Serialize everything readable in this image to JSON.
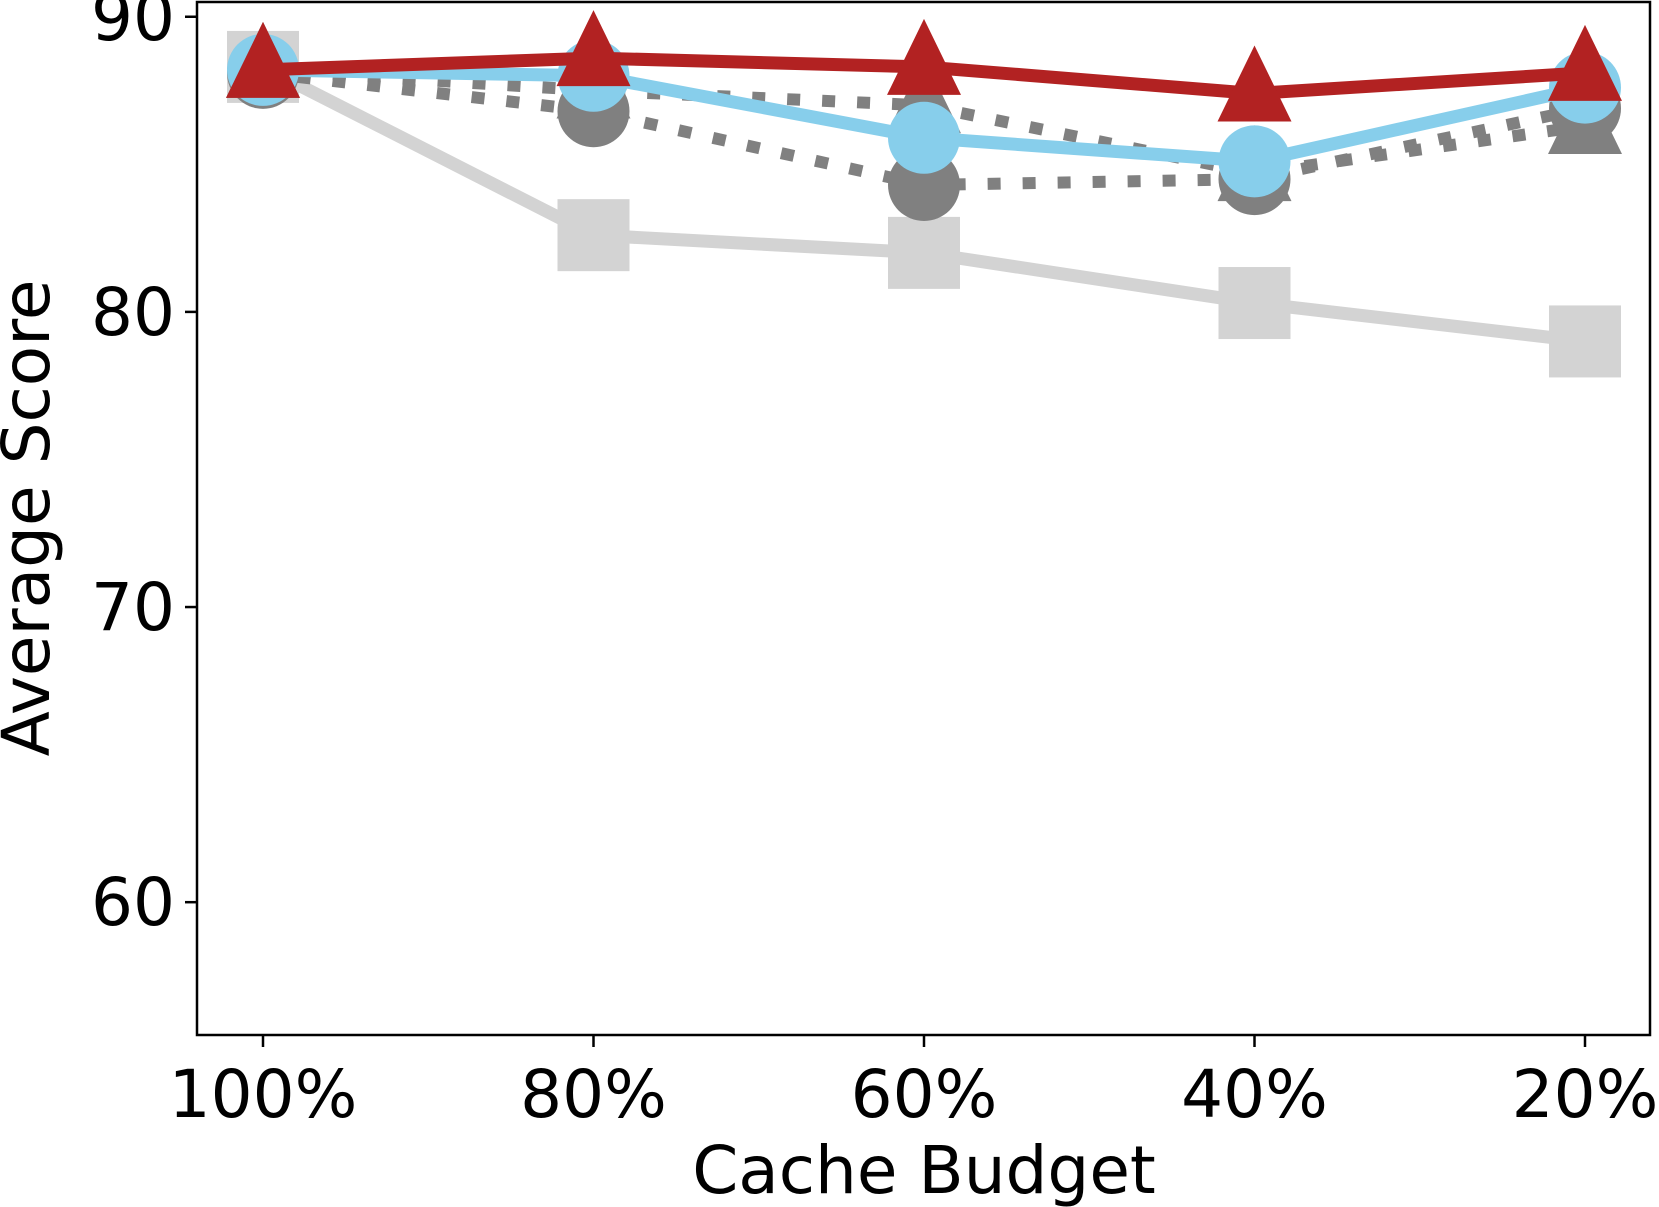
{
  "chart_data": {
    "type": "line",
    "title": "",
    "xlabel": "Cache Budget",
    "ylabel": "Average Score",
    "categories": [
      "100%",
      "80%",
      "60%",
      "40%",
      "20%"
    ],
    "ylim": [
      55.5,
      90.5
    ],
    "yticks": [
      60,
      70,
      80,
      90
    ],
    "grid": false,
    "legend": "none",
    "series": [
      {
        "values": [
          88.3,
          82.6,
          82.0,
          80.3,
          79.0
        ],
        "color": "#d3d3d3",
        "linestyle": "solid",
        "marker": "square"
      },
      {
        "values": [
          88.1,
          86.8,
          84.3,
          84.5,
          86.9
        ],
        "color": "#808080",
        "linestyle": "dotted",
        "marker": "circle"
      },
      {
        "values": [
          88.2,
          87.5,
          87.0,
          84.7,
          86.3
        ],
        "color": "#808080",
        "linestyle": "dotted",
        "marker": "triangle"
      },
      {
        "values": [
          88.2,
          88.0,
          85.9,
          85.1,
          87.6
        ],
        "color": "#87ceeb",
        "linestyle": "solid",
        "marker": "circle"
      },
      {
        "values": [
          88.2,
          88.6,
          88.3,
          87.4,
          88.1
        ],
        "color": "#b22222",
        "linestyle": "solid",
        "marker": "triangle"
      }
    ]
  }
}
